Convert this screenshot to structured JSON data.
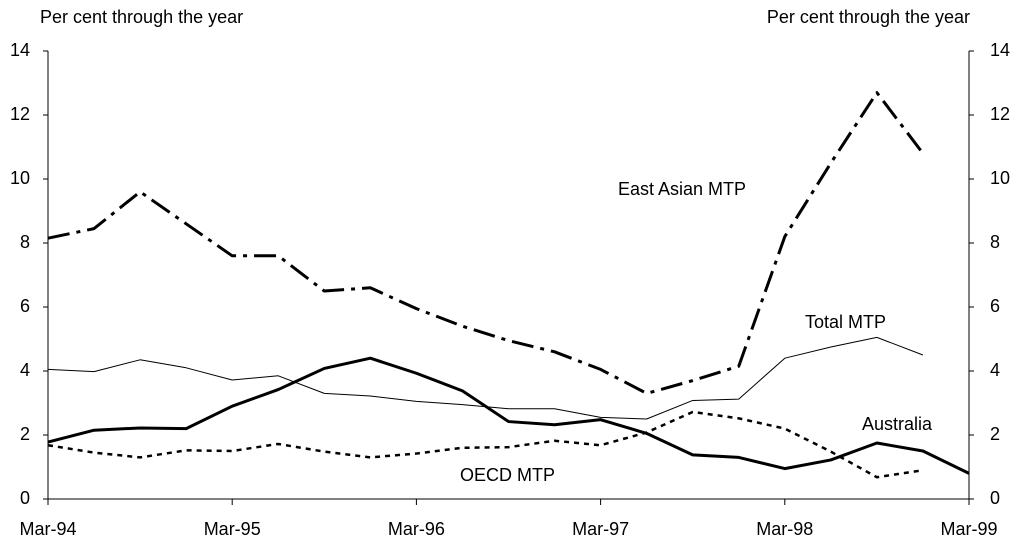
{
  "chart_data": {
    "type": "line",
    "y_label": "Per cent through the year",
    "y2_label": "Per cent through the year",
    "categories": [
      "Mar-94",
      null,
      null,
      null,
      "Mar-95",
      null,
      null,
      null,
      "Mar-96",
      null,
      null,
      null,
      "Mar-97",
      null,
      null,
      null,
      "Mar-98",
      null,
      null,
      null,
      "Mar-99"
    ],
    "series": [
      {
        "name": "East Asian MTP",
        "color": "#000000",
        "line_style": "dashdot",
        "width": 3,
        "values": [
          8.15,
          8.45,
          9.6,
          8.6,
          7.6,
          7.6,
          6.5,
          6.6,
          5.95,
          5.4,
          4.95,
          4.6,
          4.05,
          3.3,
          3.7,
          4.15,
          8.2,
          10.5,
          12.7,
          10.8,
          null
        ]
      },
      {
        "name": "Total MTP",
        "color": "#000000",
        "line_style": "solid",
        "width": 1,
        "values": [
          4.05,
          3.98,
          4.35,
          4.1,
          3.72,
          3.85,
          3.3,
          3.22,
          3.05,
          2.95,
          2.82,
          2.82,
          2.55,
          2.5,
          3.08,
          3.12,
          4.4,
          4.75,
          5.05,
          4.5,
          null
        ]
      },
      {
        "name": "Australia",
        "color": "#000000",
        "line_style": "solid",
        "width": 3,
        "values": [
          1.78,
          2.15,
          2.22,
          2.2,
          2.9,
          3.42,
          4.08,
          4.4,
          3.93,
          3.38,
          2.42,
          2.32,
          2.48,
          2.05,
          1.38,
          1.3,
          0.95,
          1.22,
          1.75,
          1.5,
          0.8
        ]
      },
      {
        "name": "OECD MTP",
        "color": "#000000",
        "line_style": "dotted",
        "width": 2.5,
        "values": [
          1.68,
          1.45,
          1.3,
          1.52,
          1.5,
          1.72,
          1.48,
          1.3,
          1.42,
          1.6,
          1.62,
          1.82,
          1.68,
          2.08,
          2.72,
          2.52,
          2.2,
          1.48,
          0.68,
          0.9,
          null
        ]
      }
    ],
    "ylim": [
      0,
      14
    ],
    "yticks": [
      0,
      2,
      4,
      6,
      8,
      10,
      12,
      14
    ],
    "y2lim": [
      0,
      14
    ],
    "y2ticks": [
      0,
      2,
      4,
      6,
      8,
      10,
      12,
      14
    ],
    "grid": false
  }
}
